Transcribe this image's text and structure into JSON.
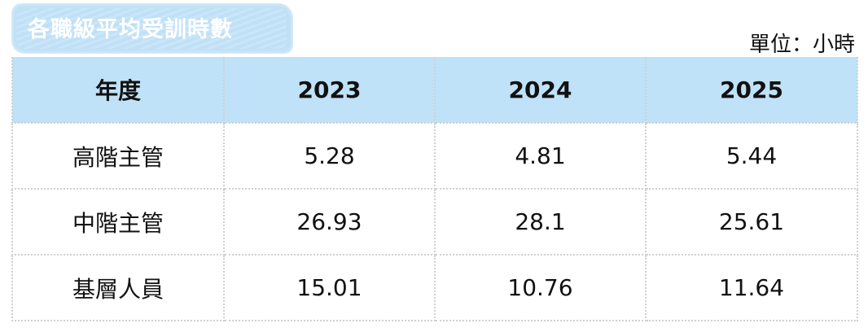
{
  "title": "各職級平均受訓時數",
  "unit": "單位：小時",
  "table": {
    "headers": [
      "年度",
      "2023",
      "2024",
      "2025"
    ],
    "rows": [
      [
        "高階主管",
        "5.28",
        "4.81",
        "5.44"
      ],
      [
        "中階主管",
        "26.93",
        "28.1",
        "25.61"
      ],
      [
        "基層人員",
        "15.01",
        "10.76",
        "11.64"
      ]
    ]
  },
  "colors": {
    "header_bg": "#bfe2f8",
    "title_tag_bg": "#bfe0f6"
  }
}
